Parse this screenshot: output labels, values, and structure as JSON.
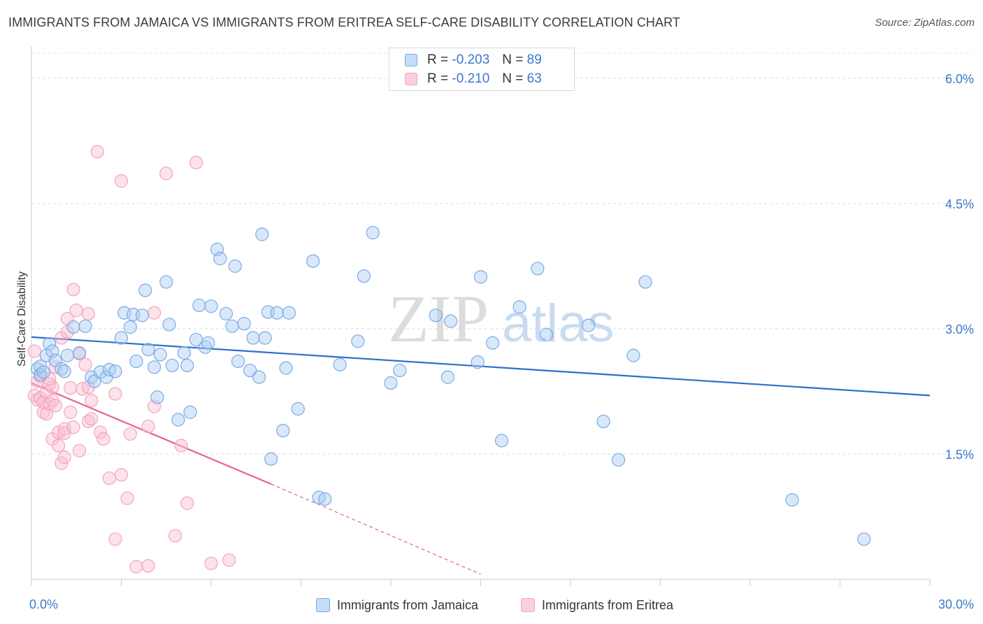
{
  "title": "IMMIGRANTS FROM JAMAICA VS IMMIGRANTS FROM ERITREA SELF-CARE DISABILITY CORRELATION CHART",
  "source": "Source: ZipAtlas.com",
  "watermark": {
    "zip": "ZIP",
    "atlas": "atlas"
  },
  "chart_data": {
    "type": "scatter",
    "ylabel": "Self-Care Disability",
    "xlabel": "",
    "xlim": [
      0,
      30
    ],
    "ylim": [
      0,
      6.3
    ],
    "x_tick_labels": [
      {
        "value": 0,
        "label": "0.0%"
      },
      {
        "value": 30,
        "label": "30.0%"
      }
    ],
    "y_tick_labels": [
      {
        "value": 1.5,
        "label": "1.5%"
      },
      {
        "value": 3.0,
        "label": "3.0%"
      },
      {
        "value": 4.5,
        "label": "4.5%"
      },
      {
        "value": 6.0,
        "label": "6.0%"
      }
    ],
    "grid": "horizontal dashed",
    "legend_position": "top-center",
    "series": [
      {
        "name": "Immigrants from Jamaica",
        "color": "#7aaae8",
        "line_color": "#2c6fcb",
        "R": "-0.203",
        "N": "89",
        "trend": {
          "x": [
            0,
            30
          ],
          "y": [
            2.9,
            2.2
          ]
        },
        "points": [
          [
            0.2,
            2.52
          ],
          [
            0.3,
            2.45
          ],
          [
            0.3,
            2.55
          ],
          [
            0.4,
            2.48
          ],
          [
            0.5,
            2.68
          ],
          [
            0.6,
            2.82
          ],
          [
            0.7,
            2.73
          ],
          [
            0.8,
            2.62
          ],
          [
            1.0,
            2.52
          ],
          [
            1.1,
            2.49
          ],
          [
            1.2,
            2.68
          ],
          [
            1.4,
            3.02
          ],
          [
            1.6,
            2.71
          ],
          [
            1.8,
            3.03
          ],
          [
            2.0,
            2.42
          ],
          [
            2.1,
            2.37
          ],
          [
            2.3,
            2.48
          ],
          [
            2.5,
            2.42
          ],
          [
            2.6,
            2.51
          ],
          [
            2.8,
            2.49
          ],
          [
            3.0,
            2.89
          ],
          [
            3.1,
            3.19
          ],
          [
            3.3,
            3.02
          ],
          [
            3.4,
            3.17
          ],
          [
            3.5,
            2.61
          ],
          [
            3.7,
            3.16
          ],
          [
            3.8,
            3.46
          ],
          [
            3.9,
            2.75
          ],
          [
            4.1,
            2.54
          ],
          [
            4.2,
            2.18
          ],
          [
            4.3,
            2.69
          ],
          [
            4.5,
            3.56
          ],
          [
            4.6,
            3.05
          ],
          [
            4.7,
            2.56
          ],
          [
            4.9,
            1.91
          ],
          [
            5.1,
            2.71
          ],
          [
            5.2,
            2.56
          ],
          [
            5.3,
            2.0
          ],
          [
            5.5,
            2.87
          ],
          [
            5.6,
            3.28
          ],
          [
            5.8,
            2.78
          ],
          [
            5.9,
            2.83
          ],
          [
            6.0,
            3.27
          ],
          [
            6.2,
            3.95
          ],
          [
            6.3,
            3.84
          ],
          [
            6.5,
            3.18
          ],
          [
            6.7,
            3.03
          ],
          [
            6.8,
            3.75
          ],
          [
            6.9,
            2.61
          ],
          [
            7.1,
            3.06
          ],
          [
            7.3,
            2.5
          ],
          [
            7.4,
            2.89
          ],
          [
            7.6,
            2.42
          ],
          [
            7.7,
            4.13
          ],
          [
            7.8,
            2.89
          ],
          [
            7.9,
            3.2
          ],
          [
            8.0,
            1.44
          ],
          [
            8.2,
            3.19
          ],
          [
            8.4,
            1.78
          ],
          [
            8.5,
            2.53
          ],
          [
            8.6,
            3.19
          ],
          [
            8.9,
            2.04
          ],
          [
            9.4,
            3.81
          ],
          [
            9.6,
            0.98
          ],
          [
            9.8,
            0.96
          ],
          [
            10.3,
            2.57
          ],
          [
            10.9,
            2.85
          ],
          [
            11.1,
            3.63
          ],
          [
            11.4,
            4.15
          ],
          [
            12.0,
            2.35
          ],
          [
            12.3,
            2.5
          ],
          [
            13.5,
            3.16
          ],
          [
            13.9,
            2.42
          ],
          [
            14.0,
            3.09
          ],
          [
            14.9,
            2.6
          ],
          [
            15.0,
            3.62
          ],
          [
            15.4,
            2.83
          ],
          [
            15.7,
            1.66
          ],
          [
            16.3,
            3.26
          ],
          [
            16.9,
            3.72
          ],
          [
            17.2,
            2.93
          ],
          [
            18.6,
            3.04
          ],
          [
            19.1,
            1.89
          ],
          [
            19.6,
            1.43
          ],
          [
            20.1,
            2.68
          ],
          [
            20.5,
            3.56
          ],
          [
            25.4,
            0.95
          ],
          [
            27.8,
            0.48
          ]
        ]
      },
      {
        "name": "Immigrants from Eritrea",
        "color": "#f4a3bd",
        "line_color": "#e7638e",
        "R": "-0.210",
        "N": "63",
        "trend": {
          "x": [
            0,
            8
          ],
          "y": [
            2.35,
            1.14
          ]
        },
        "trend_extension": {
          "x": [
            8,
            15
          ],
          "y": [
            1.14,
            0.06
          ]
        },
        "points": [
          [
            0.1,
            2.73
          ],
          [
            0.1,
            2.2
          ],
          [
            0.2,
            2.37
          ],
          [
            0.2,
            2.15
          ],
          [
            0.3,
            2.43
          ],
          [
            0.3,
            2.17
          ],
          [
            0.4,
            2.0
          ],
          [
            0.4,
            2.12
          ],
          [
            0.5,
            1.98
          ],
          [
            0.5,
            2.24
          ],
          [
            0.6,
            2.34
          ],
          [
            0.6,
            2.1
          ],
          [
            0.7,
            2.14
          ],
          [
            0.7,
            2.3
          ],
          [
            0.7,
            1.68
          ],
          [
            0.8,
            2.08
          ],
          [
            0.8,
            2.54
          ],
          [
            0.9,
            1.76
          ],
          [
            0.9,
            1.6
          ],
          [
            1.0,
            1.39
          ],
          [
            1.0,
            2.89
          ],
          [
            1.1,
            1.8
          ],
          [
            1.1,
            1.75
          ],
          [
            1.2,
            3.12
          ],
          [
            1.2,
            2.96
          ],
          [
            1.3,
            2.29
          ],
          [
            1.3,
            2.0
          ],
          [
            1.4,
            1.82
          ],
          [
            1.4,
            3.47
          ],
          [
            1.5,
            3.22
          ],
          [
            1.6,
            2.7
          ],
          [
            1.6,
            1.54
          ],
          [
            1.7,
            2.28
          ],
          [
            1.8,
            2.57
          ],
          [
            1.9,
            1.89
          ],
          [
            1.9,
            3.18
          ],
          [
            1.9,
            2.3
          ],
          [
            2.0,
            1.92
          ],
          [
            2.0,
            2.14
          ],
          [
            2.2,
            5.12
          ],
          [
            2.3,
            1.76
          ],
          [
            2.4,
            1.68
          ],
          [
            2.6,
            1.21
          ],
          [
            2.8,
            2.22
          ],
          [
            2.8,
            0.48
          ],
          [
            3.0,
            4.77
          ],
          [
            3.0,
            1.25
          ],
          [
            3.2,
            0.97
          ],
          [
            3.3,
            1.74
          ],
          [
            3.5,
            0.15
          ],
          [
            3.9,
            1.83
          ],
          [
            3.9,
            0.16
          ],
          [
            4.1,
            2.07
          ],
          [
            4.1,
            3.19
          ],
          [
            4.5,
            4.86
          ],
          [
            4.8,
            0.52
          ],
          [
            5.0,
            1.6
          ],
          [
            5.2,
            0.91
          ],
          [
            5.5,
            4.99
          ],
          [
            6.0,
            0.19
          ],
          [
            6.6,
            0.23
          ],
          [
            1.1,
            1.46
          ],
          [
            0.6,
            2.4
          ]
        ]
      }
    ]
  }
}
